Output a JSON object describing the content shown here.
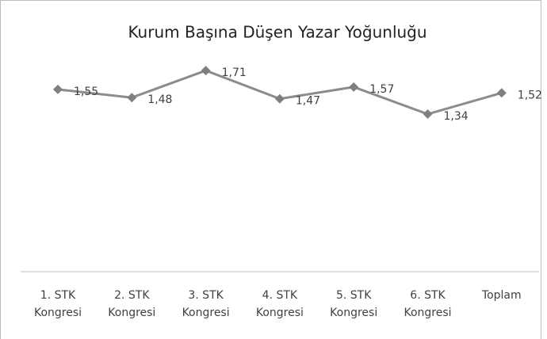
{
  "chart_data": {
    "type": "line",
    "title": "Kurum Başına Düşen Yazar Yoğunluğu",
    "categories": [
      "1. STK Kongresi",
      "2. STK Kongresi",
      "3. STK Kongresi",
      "4. STK Kongresi",
      "5. STK Kongresi",
      "6. STK Kongresi",
      "Toplam"
    ],
    "series": [
      {
        "name": null,
        "color": "#8c8c8c",
        "values": [
          1.55,
          1.48,
          1.71,
          1.47,
          1.57,
          1.34,
          1.52
        ],
        "value_labels": [
          "1,55",
          "1,48",
          "1,71",
          "1,47",
          "1,57",
          "1,34",
          "1,52"
        ]
      }
    ],
    "ylim": [
      0,
      2
    ]
  }
}
